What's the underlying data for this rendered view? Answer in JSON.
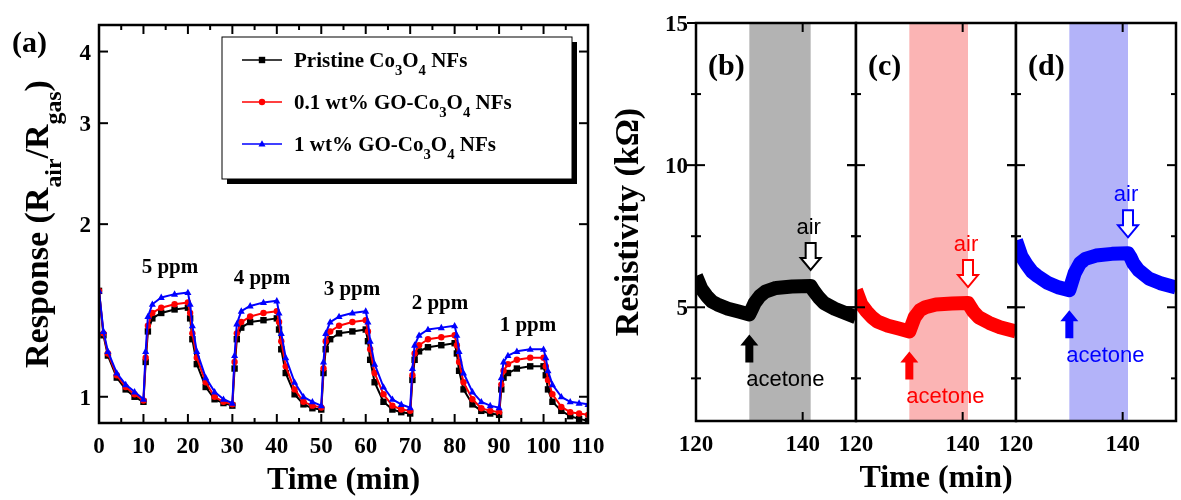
{
  "chart_data": [
    {
      "type": "line",
      "title": "(a)",
      "xlabel": "Time (min)",
      "ylabel": "Response (R$_{air}$/R$_{gas}$)",
      "log": true,
      "legend": "top right",
      "xlim": [
        0,
        110
      ],
      "xticks": [
        0,
        {
          "value": 5,
          "label": null
        },
        10,
        {
          "value": 15,
          "label": null
        },
        20,
        {
          "value": 25,
          "label": null
        },
        30,
        {
          "value": 35,
          "label": null
        },
        40,
        {
          "value": 45,
          "label": null
        },
        50,
        {
          "value": 55,
          "label": null
        },
        60,
        {
          "value": 65,
          "label": null
        },
        70,
        {
          "value": 75,
          "label": null
        },
        80,
        {
          "value": 85,
          "label": null
        },
        90,
        {
          "value": 95,
          "label": null
        },
        100,
        {
          "value": 105,
          "label": null
        },
        110
      ],
      "ylim": [
        0.9,
        4.45
      ],
      "yticks": [
        1,
        2,
        3,
        4
      ],
      "x": [
        0,
        1,
        2,
        4,
        6,
        8,
        10,
        10.5,
        11,
        12,
        14,
        17,
        20,
        20.5,
        21,
        22,
        24,
        26,
        28,
        30,
        30.5,
        31,
        32,
        34,
        37,
        40,
        40.5,
        41,
        42,
        44,
        46,
        48,
        50,
        50.5,
        51,
        52,
        54,
        57,
        60,
        60.5,
        61,
        62,
        64,
        66,
        68,
        70,
        70.5,
        71,
        72,
        74,
        77,
        80,
        80.5,
        81,
        82,
        84,
        86,
        88,
        90,
        90.5,
        91,
        92,
        94,
        97,
        100,
        100.5,
        101,
        102,
        104,
        106,
        108,
        110
      ],
      "series": [
        {
          "name": "Pristine Co$_{3}$O$_{4}$ NFs",
          "color": "#000000",
          "marker": "square",
          "values": [
            1.53,
            1.28,
            1.18,
            1.08,
            1.03,
            1.0,
            0.98,
            1.15,
            1.3,
            1.37,
            1.4,
            1.42,
            1.43,
            1.37,
            1.26,
            1.14,
            1.04,
            0.99,
            0.975,
            0.965,
            1.12,
            1.26,
            1.32,
            1.35,
            1.36,
            1.37,
            1.31,
            1.21,
            1.1,
            1.01,
            0.97,
            0.955,
            0.95,
            1.1,
            1.21,
            1.26,
            1.29,
            1.3,
            1.31,
            1.25,
            1.16,
            1.06,
            0.98,
            0.95,
            0.94,
            0.935,
            1.07,
            1.16,
            1.2,
            1.22,
            1.23,
            1.24,
            1.19,
            1.11,
            1.03,
            0.97,
            0.945,
            0.935,
            0.93,
            1.03,
            1.08,
            1.1,
            1.12,
            1.13,
            1.13,
            1.09,
            1.03,
            0.98,
            0.945,
            0.925,
            0.915,
            0.908
          ]
        },
        {
          "name": "0.1 wt% GO-Co$_{3}$O$_{4}$ NFs",
          "color": "#ff0000",
          "marker": "circle",
          "values": [
            1.53,
            1.29,
            1.19,
            1.09,
            1.04,
            1.01,
            0.985,
            1.17,
            1.33,
            1.4,
            1.43,
            1.45,
            1.46,
            1.4,
            1.29,
            1.17,
            1.06,
            1.0,
            0.98,
            0.97,
            1.15,
            1.29,
            1.35,
            1.38,
            1.4,
            1.41,
            1.35,
            1.25,
            1.13,
            1.03,
            0.98,
            0.965,
            0.958,
            1.12,
            1.25,
            1.3,
            1.33,
            1.35,
            1.36,
            1.3,
            1.21,
            1.1,
            1.01,
            0.965,
            0.95,
            0.945,
            1.09,
            1.19,
            1.23,
            1.26,
            1.27,
            1.28,
            1.23,
            1.15,
            1.06,
            0.99,
            0.955,
            0.945,
            0.94,
            1.05,
            1.11,
            1.14,
            1.16,
            1.17,
            1.17,
            1.13,
            1.07,
            1.01,
            0.96,
            0.94,
            0.935,
            0.93
          ]
        },
        {
          "name": "1 wt% GO-Co$_{3}$O$_{4}$ NFs",
          "color": "#0000ff",
          "marker": "triangle",
          "values": [
            1.53,
            1.3,
            1.2,
            1.1,
            1.05,
            1.02,
            0.99,
            1.2,
            1.38,
            1.45,
            1.49,
            1.51,
            1.52,
            1.45,
            1.33,
            1.2,
            1.08,
            1.02,
            0.99,
            0.975,
            1.18,
            1.34,
            1.41,
            1.44,
            1.46,
            1.47,
            1.4,
            1.29,
            1.17,
            1.06,
            1.0,
            0.98,
            0.965,
            1.15,
            1.29,
            1.35,
            1.38,
            1.4,
            1.41,
            1.35,
            1.25,
            1.14,
            1.04,
            0.99,
            0.97,
            0.957,
            1.12,
            1.23,
            1.28,
            1.31,
            1.32,
            1.33,
            1.28,
            1.2,
            1.1,
            1.02,
            0.98,
            0.965,
            0.957,
            1.08,
            1.15,
            1.18,
            1.2,
            1.21,
            1.21,
            1.17,
            1.11,
            1.05,
            1.0,
            0.98,
            0.975,
            0.97
          ]
        }
      ],
      "annotations": [
        "5 ppm",
        "4 ppm",
        "3 ppm",
        "2 ppm",
        "1 ppm"
      ]
    },
    {
      "type": "line",
      "title": "(b)",
      "ylabel": "Resistivity (kΩ)",
      "xlim": [
        120,
        150
      ],
      "xticks": [
        120,
        140
      ],
      "ylim": [
        1,
        15
      ],
      "yticks": [
        {
          "value": 2.5,
          "label": null
        },
        5,
        {
          "value": 7.5,
          "label": null
        },
        10,
        {
          "value": 12.5,
          "label": null
        },
        15
      ],
      "bands": [
        {
          "axis": "x",
          "from": 130,
          "to": 141.5,
          "color": "#b3b3b3"
        }
      ],
      "x": [
        120,
        121,
        122,
        123,
        124,
        126,
        128,
        130,
        130.5,
        131,
        132,
        133,
        135,
        138,
        141.5,
        142,
        143,
        144,
        146,
        148,
        150
      ],
      "series": [
        {
          "color": "#000000",
          "values": [
            6.1,
            5.65,
            5.4,
            5.2,
            5.1,
            4.95,
            4.85,
            4.75,
            4.95,
            5.15,
            5.4,
            5.55,
            5.68,
            5.73,
            5.75,
            5.6,
            5.35,
            5.15,
            4.95,
            4.8,
            4.65
          ]
        }
      ],
      "annotations": [
        {
          "text": "acetone",
          "x": 130,
          "y": 4.75
        },
        {
          "text": "air",
          "x": 141.5,
          "y": 5.75
        }
      ]
    },
    {
      "type": "line",
      "title": "(c)",
      "xlabel": "Time (min)",
      "tick_labels": "x",
      "xlim": [
        120,
        150
      ],
      "xticks": [
        120,
        140
      ],
      "ylim": [
        1,
        15
      ],
      "yticks": [
        {
          "value": 2.5,
          "label": null
        },
        5,
        {
          "value": 7.5,
          "label": null
        },
        10,
        {
          "value": 12.5,
          "label": null
        },
        15
      ],
      "bands": [
        {
          "axis": "x",
          "from": 130,
          "to": 141,
          "color": "#fbb4b4"
        }
      ],
      "x": [
        120,
        121,
        122,
        123,
        124,
        126,
        128,
        130,
        130.5,
        131,
        132,
        133,
        135,
        138,
        141,
        141.5,
        142,
        143,
        145,
        147,
        150
      ],
      "series": [
        {
          "color": "#ff0000",
          "values": [
            5.6,
            5.1,
            4.85,
            4.65,
            4.5,
            4.35,
            4.25,
            4.15,
            4.4,
            4.65,
            4.9,
            5.0,
            5.1,
            5.13,
            5.15,
            5.0,
            4.85,
            4.65,
            4.45,
            4.3,
            4.15
          ]
        }
      ],
      "annotations": [
        {
          "text": "acetone",
          "x": 130,
          "y": 4.15
        },
        {
          "text": "air",
          "x": 141,
          "y": 5.15
        }
      ]
    },
    {
      "type": "line",
      "title": "(d)",
      "tick_labels": "x",
      "xlim": [
        120,
        150
      ],
      "xticks": [
        120,
        140
      ],
      "ylim": [
        1,
        15
      ],
      "yticks": [
        {
          "value": 2.5,
          "label": null
        },
        5,
        {
          "value": 7.5,
          "label": null
        },
        10,
        {
          "value": 12.5,
          "label": null
        },
        15
      ],
      "bands": [
        {
          "axis": "x",
          "from": 130,
          "to": 141,
          "color": "#b3b3f9"
        }
      ],
      "x": [
        120,
        121,
        122,
        123,
        124,
        126,
        128,
        130,
        130.5,
        131,
        132,
        133,
        135,
        138,
        141,
        141.5,
        142,
        143,
        145,
        147,
        150
      ],
      "series": [
        {
          "color": "#0000ff",
          "values": [
            7.35,
            6.8,
            6.5,
            6.25,
            6.1,
            5.85,
            5.7,
            5.6,
            5.9,
            6.2,
            6.55,
            6.7,
            6.82,
            6.88,
            6.9,
            6.75,
            6.55,
            6.3,
            6.0,
            5.85,
            5.7
          ]
        }
      ],
      "annotations": [
        {
          "text": "acetone",
          "x": 130,
          "y": 5.6
        },
        {
          "text": "air",
          "x": 141,
          "y": 6.9
        }
      ]
    }
  ]
}
